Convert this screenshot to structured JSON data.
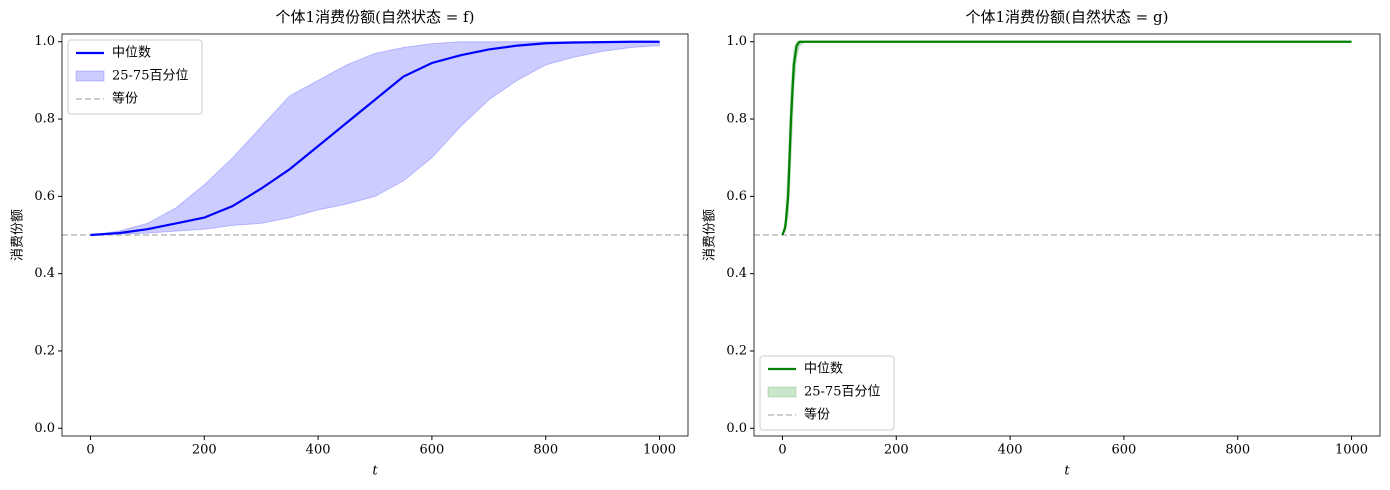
{
  "chart_data": [
    {
      "type": "line",
      "title": "个体1消费份额(自然状态 = f)",
      "xlabel": "t",
      "ylabel": "消费份额",
      "x": [
        0,
        50,
        100,
        150,
        200,
        250,
        300,
        350,
        400,
        450,
        500,
        550,
        600,
        650,
        700,
        750,
        800,
        850,
        900,
        950,
        1000
      ],
      "series": [
        {
          "name": "中位数",
          "color": "#0000ff",
          "values": [
            0.5,
            0.505,
            0.515,
            0.53,
            0.545,
            0.575,
            0.62,
            0.67,
            0.73,
            0.79,
            0.85,
            0.91,
            0.945,
            0.965,
            0.98,
            0.99,
            0.996,
            0.998,
            0.999,
            1.0,
            1.0
          ]
        }
      ],
      "band": {
        "name": "25-75百分位",
        "color": "#0000ff",
        "lower": [
          0.5,
          0.502,
          0.505,
          0.51,
          0.515,
          0.525,
          0.53,
          0.545,
          0.565,
          0.58,
          0.6,
          0.64,
          0.7,
          0.78,
          0.85,
          0.9,
          0.94,
          0.96,
          0.975,
          0.985,
          0.99
        ],
        "upper": [
          0.5,
          0.51,
          0.53,
          0.57,
          0.63,
          0.7,
          0.78,
          0.86,
          0.9,
          0.94,
          0.97,
          0.985,
          0.995,
          1.0,
          1.0,
          1.0,
          1.0,
          1.0,
          1.0,
          1.0,
          1.0
        ]
      },
      "hline": {
        "name": "等份",
        "value": 0.5,
        "color": "#bbbbbb"
      },
      "xlim": [
        -50,
        1050
      ],
      "ylim": [
        -0.02,
        1.02
      ],
      "xticks": [
        0,
        200,
        400,
        600,
        800,
        1000
      ],
      "yticks": [
        {
          "value": 0,
          "label": "0.0"
        },
        0.2,
        0.4,
        0.6,
        0.8,
        {
          "value": 1,
          "label": "1.0"
        }
      ],
      "legend": "upper left"
    },
    {
      "type": "line",
      "title": "个体1消费份额(自然状态 = g)",
      "xlabel": "t",
      "ylabel": "消费份额",
      "x": [
        0,
        5,
        10,
        15,
        20,
        25,
        30,
        40,
        50,
        100,
        200,
        300,
        400,
        500,
        600,
        700,
        800,
        900,
        1000
      ],
      "series": [
        {
          "name": "中位数",
          "color": "#008000",
          "values": [
            0.5,
            0.52,
            0.6,
            0.8,
            0.94,
            0.99,
            1.0,
            1.0,
            1.0,
            1.0,
            1.0,
            1.0,
            1.0,
            1.0,
            1.0,
            1.0,
            1.0,
            1.0,
            1.0
          ]
        }
      ],
      "band": {
        "name": "25-75百分位",
        "color": "#008000",
        "lower": [
          0.5,
          0.51,
          0.55,
          0.7,
          0.88,
          0.96,
          0.99,
          1.0,
          1.0,
          1.0,
          1.0,
          1.0,
          1.0,
          1.0,
          1.0,
          1.0,
          1.0,
          1.0,
          1.0
        ],
        "upper": [
          0.5,
          0.54,
          0.68,
          0.88,
          0.98,
          1.0,
          1.0,
          1.0,
          1.0,
          1.0,
          1.0,
          1.0,
          1.0,
          1.0,
          1.0,
          1.0,
          1.0,
          1.0,
          1.0
        ]
      },
      "hline": {
        "name": "等份",
        "value": 0.5,
        "color": "#bbbbbb"
      },
      "xlim": [
        -50,
        1050
      ],
      "ylim": [
        -0.02,
        1.02
      ],
      "xticks": [
        0,
        200,
        400,
        600,
        800,
        1000
      ],
      "yticks": [
        {
          "value": 0,
          "label": "0.0"
        },
        0.2,
        0.4,
        0.6,
        0.8,
        {
          "value": 1,
          "label": "1.0"
        }
      ],
      "legend": "lower left"
    }
  ]
}
